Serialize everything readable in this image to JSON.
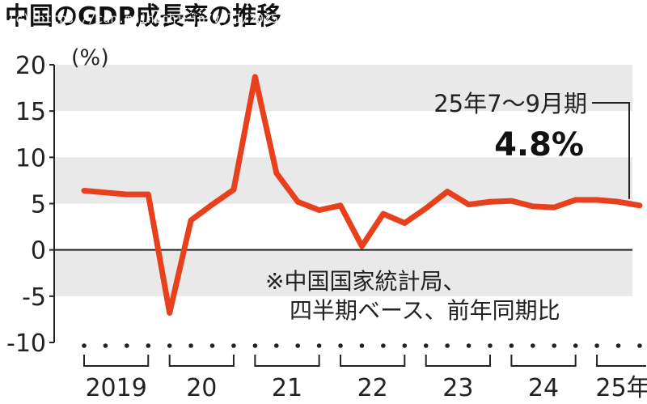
{
  "title": "中国のGDP成長率の推移",
  "credit": "(c) https://cdn.mainichi.jp/vol1/2025/10/21/20251021ddm002020194000p/9.jpg",
  "colors": {
    "line": "#e8401c",
    "band": "#e9e9e9",
    "axis": "#222222"
  },
  "chart_data": {
    "type": "line",
    "ylabel": "(%)",
    "ylim": [
      -10,
      20
    ],
    "yticks": [
      20,
      15,
      10,
      5,
      0,
      -5,
      -10
    ],
    "grid": "alternating horizontal bands",
    "x_group_labels": [
      "2019",
      "20",
      "21",
      "22",
      "23",
      "24",
      "25年"
    ],
    "quarters_per_group": [
      4,
      4,
      4,
      4,
      4,
      4,
      3
    ],
    "values": [
      6.4,
      6.2,
      6.0,
      6.0,
      -6.8,
      3.2,
      4.9,
      6.5,
      18.7,
      8.3,
      5.2,
      4.3,
      4.8,
      0.4,
      3.9,
      2.9,
      4.5,
      6.3,
      4.9,
      5.2,
      5.3,
      4.7,
      4.6,
      5.4,
      5.4,
      5.2,
      4.8
    ],
    "annotation": {
      "label": "25年7〜9月期",
      "value": "4.8%"
    },
    "source_note": [
      "※中国国家統計局、",
      "四半期ベース、前年同期比"
    ]
  }
}
